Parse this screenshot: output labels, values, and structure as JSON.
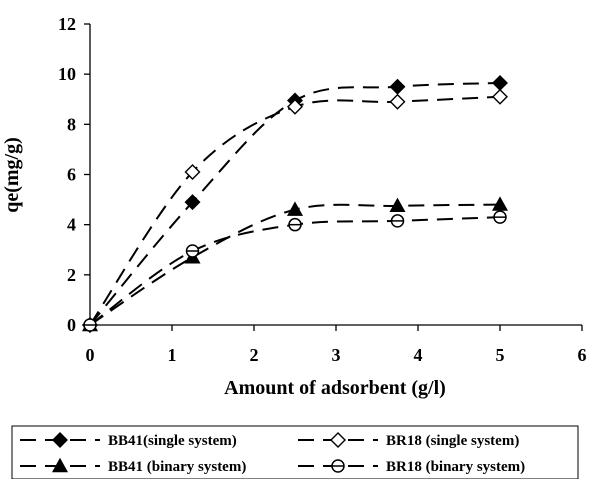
{
  "chart_data": {
    "type": "line",
    "title": "",
    "xlabel": "Amount of adsorbent (g/l)",
    "ylabel": "qe(mg/g)",
    "xlim": [
      0,
      6
    ],
    "ylim": [
      0,
      12
    ],
    "xticks": [
      "0",
      "1",
      "2",
      "3",
      "4",
      "5",
      "6"
    ],
    "yticks": [
      "0",
      "2",
      "4",
      "6",
      "8",
      "10",
      "12"
    ],
    "grid": false,
    "legend_position": "bottom",
    "series": [
      {
        "name": "BB41(single system)",
        "marker": "diamond-filled",
        "color": "#000000",
        "x": [
          0,
          1.25,
          2.5,
          3.75,
          5
        ],
        "y": [
          0,
          4.9,
          8.95,
          9.5,
          9.65
        ]
      },
      {
        "name": "BR18 (single system)",
        "marker": "diamond-open",
        "color": "#000000",
        "x": [
          0,
          1.25,
          2.5,
          3.75,
          5
        ],
        "y": [
          0,
          6.1,
          8.7,
          8.9,
          9.1
        ]
      },
      {
        "name": "BB41 (binary system)",
        "marker": "triangle-filled",
        "color": "#000000",
        "x": [
          0,
          1.25,
          2.5,
          3.75,
          5
        ],
        "y": [
          0,
          2.7,
          4.6,
          4.75,
          4.8
        ]
      },
      {
        "name": "BR18 (binary system)",
        "marker": "circle-open",
        "color": "#000000",
        "x": [
          0,
          1.25,
          2.5,
          3.75,
          5
        ],
        "y": [
          0,
          2.95,
          4.0,
          4.15,
          4.3
        ]
      }
    ]
  }
}
